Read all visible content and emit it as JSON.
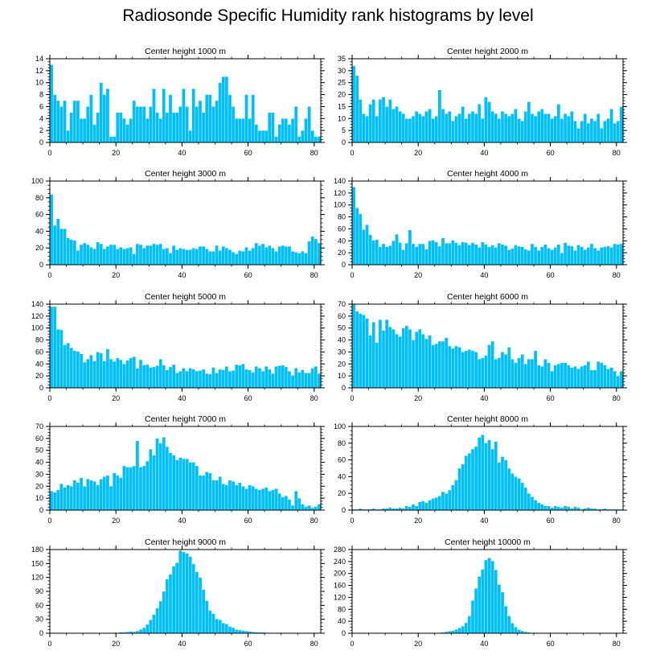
{
  "title": "Radiosonde Specific Humidity rank histograms by level",
  "bar_color": "#00BFFF",
  "chart_data": [
    {
      "type": "bar",
      "title": "Center height 1000 m",
      "xlim": [
        0,
        82
      ],
      "ylim": [
        0,
        14
      ],
      "xticks": [
        0,
        20,
        40,
        60,
        80
      ],
      "yticks": [
        0,
        2,
        4,
        6,
        8,
        10,
        12,
        14
      ],
      "values": [
        13,
        8,
        7,
        6,
        7,
        2,
        5,
        7,
        7,
        4,
        4,
        6,
        8,
        3,
        5,
        10,
        8,
        9,
        1,
        1,
        5,
        5,
        4,
        3,
        4,
        7,
        6,
        6,
        6,
        4,
        6,
        9,
        5,
        4,
        9,
        5,
        8,
        5,
        5,
        6,
        9,
        6,
        2,
        9,
        6,
        7,
        5,
        8,
        8,
        6,
        7,
        10,
        11,
        11,
        8,
        6,
        4,
        4,
        4,
        8,
        4,
        8,
        3,
        2,
        2,
        2,
        5,
        5,
        1,
        3,
        4,
        4,
        3,
        4,
        6,
        1,
        2,
        4,
        6,
        2,
        1,
        1
      ]
    },
    {
      "type": "bar",
      "title": "Center height 2000 m",
      "xlim": [
        0,
        82
      ],
      "ylim": [
        0,
        35
      ],
      "xticks": [
        0,
        20,
        40,
        60,
        80
      ],
      "yticks": [
        0,
        5,
        10,
        15,
        20,
        25,
        30,
        35
      ],
      "values": [
        32,
        28,
        18,
        12,
        11,
        16,
        18,
        11,
        18,
        19,
        15,
        18,
        14,
        15,
        13,
        12,
        10,
        10,
        11,
        13,
        12,
        11,
        13,
        14,
        10,
        11,
        22,
        14,
        12,
        13,
        9,
        11,
        12,
        15,
        10,
        12,
        13,
        12,
        16,
        10,
        19,
        17,
        13,
        12,
        10,
        13,
        12,
        11,
        12,
        14,
        10,
        9,
        13,
        17,
        12,
        11,
        13,
        14,
        12,
        12,
        10,
        11,
        16,
        10,
        12,
        11,
        13,
        9,
        6,
        9,
        12,
        8,
        10,
        9,
        12,
        6,
        9,
        10,
        14,
        8,
        9,
        15
      ]
    },
    {
      "type": "bar",
      "title": "Center height 3000 m",
      "xlim": [
        0,
        82
      ],
      "ylim": [
        0,
        100
      ],
      "xticks": [
        0,
        20,
        40,
        60,
        80
      ],
      "yticks": [
        0,
        20,
        40,
        60,
        80,
        100
      ],
      "values": [
        84,
        47,
        55,
        43,
        43,
        32,
        30,
        29,
        17,
        24,
        26,
        24,
        21,
        19,
        27,
        25,
        19,
        22,
        24,
        24,
        19,
        21,
        19,
        20,
        21,
        13,
        25,
        24,
        20,
        23,
        23,
        25,
        24,
        25,
        19,
        20,
        14,
        23,
        18,
        20,
        19,
        18,
        18,
        20,
        19,
        22,
        22,
        19,
        16,
        16,
        23,
        17,
        22,
        20,
        18,
        15,
        13,
        17,
        16,
        21,
        17,
        20,
        26,
        23,
        25,
        21,
        23,
        20,
        16,
        22,
        23,
        22,
        22,
        16,
        15,
        14,
        16,
        14,
        28,
        34,
        31,
        26
      ]
    },
    {
      "type": "bar",
      "title": "Center height 4000 m",
      "xlim": [
        0,
        82
      ],
      "ylim": [
        0,
        140
      ],
      "xticks": [
        0,
        20,
        40,
        60,
        80
      ],
      "yticks": [
        0,
        20,
        40,
        60,
        80,
        100,
        120,
        140
      ],
      "values": [
        130,
        95,
        85,
        59,
        67,
        50,
        41,
        42,
        30,
        35,
        30,
        32,
        40,
        51,
        37,
        25,
        36,
        58,
        35,
        30,
        35,
        35,
        26,
        40,
        41,
        38,
        31,
        45,
        36,
        36,
        41,
        37,
        33,
        38,
        37,
        33,
        37,
        34,
        29,
        38,
        34,
        30,
        33,
        29,
        36,
        34,
        32,
        25,
        27,
        33,
        31,
        30,
        26,
        24,
        35,
        30,
        24,
        30,
        34,
        28,
        25,
        29,
        34,
        20,
        37,
        32,
        31,
        24,
        33,
        30,
        25,
        29,
        35,
        28,
        24,
        29,
        30,
        31,
        29,
        35,
        34,
        35
      ]
    },
    {
      "type": "bar",
      "title": "Center height 5000 m",
      "xlim": [
        0,
        82
      ],
      "ylim": [
        0,
        140
      ],
      "xticks": [
        0,
        20,
        40,
        60,
        80
      ],
      "yticks": [
        0,
        20,
        40,
        60,
        80,
        100,
        120,
        140
      ],
      "values": [
        136,
        136,
        98,
        97,
        72,
        75,
        67,
        62,
        61,
        57,
        43,
        48,
        55,
        45,
        60,
        58,
        45,
        65,
        48,
        44,
        50,
        47,
        40,
        46,
        50,
        52,
        33,
        47,
        38,
        39,
        34,
        35,
        37,
        48,
        38,
        30,
        35,
        39,
        25,
        28,
        33,
        28,
        33,
        31,
        28,
        29,
        31,
        24,
        23,
        34,
        25,
        31,
        30,
        36,
        28,
        29,
        39,
        38,
        40,
        31,
        30,
        26,
        36,
        33,
        28,
        36,
        31,
        24,
        36,
        37,
        38,
        35,
        28,
        21,
        33,
        26,
        30,
        25,
        25,
        33,
        36,
        24
      ]
    },
    {
      "type": "bar",
      "title": "Center height 6000 m",
      "xlim": [
        0,
        82
      ],
      "ylim": [
        0,
        70
      ],
      "xticks": [
        0,
        20,
        40,
        60,
        80
      ],
      "yticks": [
        0,
        10,
        20,
        30,
        40,
        50,
        60,
        70
      ],
      "values": [
        70,
        64,
        62,
        61,
        58,
        44,
        55,
        38,
        57,
        48,
        57,
        51,
        49,
        45,
        43,
        50,
        52,
        49,
        40,
        47,
        49,
        45,
        41,
        44,
        36,
        37,
        39,
        39,
        42,
        35,
        33,
        35,
        34,
        30,
        31,
        32,
        31,
        30,
        24,
        25,
        27,
        36,
        39,
        24,
        25,
        30,
        28,
        34,
        24,
        21,
        25,
        28,
        20,
        24,
        24,
        31,
        19,
        18,
        24,
        21,
        14,
        19,
        20,
        21,
        21,
        19,
        17,
        18,
        16,
        18,
        19,
        22,
        15,
        15,
        22,
        21,
        19,
        16,
        17,
        14,
        10,
        14
      ]
    },
    {
      "type": "bar",
      "title": "Center height 7000 m",
      "xlim": [
        0,
        82
      ],
      "ylim": [
        0,
        70
      ],
      "xticks": [
        0,
        20,
        40,
        60,
        80
      ],
      "yticks": [
        0,
        10,
        20,
        30,
        40,
        50,
        60,
        70
      ],
      "values": [
        16,
        15,
        17,
        22,
        19,
        21,
        20,
        25,
        23,
        27,
        20,
        26,
        25,
        24,
        21,
        26,
        28,
        29,
        20,
        31,
        29,
        27,
        37,
        36,
        36,
        37,
        58,
        36,
        37,
        41,
        51,
        46,
        60,
        56,
        61,
        53,
        48,
        46,
        42,
        44,
        43,
        43,
        40,
        40,
        37,
        29,
        29,
        32,
        31,
        25,
        25,
        28,
        22,
        21,
        25,
        24,
        21,
        23,
        20,
        18,
        21,
        20,
        18,
        17,
        18,
        19,
        16,
        17,
        18,
        14,
        11,
        12,
        9,
        4,
        16,
        10,
        5,
        3,
        4,
        2,
        3,
        5
      ]
    },
    {
      "type": "bar",
      "title": "Center height 8000 m",
      "xlim": [
        0,
        82
      ],
      "ylim": [
        0,
        100
      ],
      "xticks": [
        0,
        20,
        40,
        60,
        80
      ],
      "yticks": [
        0,
        20,
        40,
        60,
        80,
        100
      ],
      "values": [
        1,
        1,
        2,
        1,
        1,
        1,
        2,
        1,
        1,
        2,
        2,
        3,
        2,
        2,
        3,
        2,
        5,
        4,
        7,
        5,
        10,
        11,
        9,
        12,
        14,
        15,
        17,
        22,
        20,
        24,
        30,
        36,
        50,
        55,
        65,
        68,
        73,
        76,
        87,
        90,
        80,
        84,
        73,
        82,
        57,
        64,
        60,
        50,
        44,
        40,
        38,
        33,
        27,
        20,
        16,
        12,
        9,
        7,
        5,
        5,
        3,
        5,
        4,
        3,
        5,
        4,
        2,
        4,
        3,
        1,
        2,
        3,
        2,
        2,
        1,
        1,
        2,
        1,
        1,
        1,
        1,
        1
      ]
    },
    {
      "type": "bar",
      "title": "Center height 9000 m",
      "xlim": [
        0,
        82
      ],
      "ylim": [
        0,
        180
      ],
      "xticks": [
        0,
        20,
        40,
        60,
        80
      ],
      "yticks": [
        0,
        30,
        60,
        90,
        120,
        150,
        180
      ],
      "values": [
        0,
        0,
        0,
        0,
        0,
        0,
        0,
        0,
        0,
        0,
        0,
        0,
        0,
        0,
        0,
        0,
        0,
        0,
        0,
        1,
        1,
        2,
        2,
        3,
        4,
        3,
        5,
        8,
        12,
        19,
        29,
        40,
        54,
        69,
        90,
        116,
        127,
        144,
        152,
        178,
        175,
        172,
        165,
        149,
        132,
        120,
        94,
        70,
        49,
        42,
        31,
        29,
        22,
        20,
        14,
        12,
        8,
        7,
        6,
        5,
        4,
        3,
        2,
        2,
        2,
        1,
        1,
        1,
        1,
        1,
        1,
        0,
        0,
        0,
        0,
        0,
        0,
        0,
        0,
        0,
        0,
        0
      ]
    },
    {
      "type": "bar",
      "title": "Center height 10000 m",
      "xlim": [
        0,
        82
      ],
      "ylim": [
        0,
        280
      ],
      "xticks": [
        0,
        20,
        40,
        60,
        80
      ],
      "yticks": [
        0,
        40,
        80,
        120,
        160,
        200,
        240,
        280
      ],
      "values": [
        0,
        0,
        0,
        0,
        0,
        0,
        0,
        0,
        0,
        0,
        0,
        0,
        0,
        0,
        0,
        0,
        0,
        0,
        0,
        0,
        0,
        0,
        0,
        0,
        0,
        1,
        2,
        3,
        5,
        7,
        9,
        13,
        18,
        24,
        35,
        58,
        110,
        150,
        190,
        214,
        245,
        252,
        242,
        212,
        163,
        138,
        91,
        58,
        34,
        21,
        12,
        8,
        5,
        3,
        2,
        2,
        1,
        1,
        1,
        0,
        0,
        0,
        0,
        0,
        0,
        0,
        0,
        0,
        0,
        0,
        0,
        0,
        0,
        0,
        0,
        0,
        0,
        0,
        0,
        0,
        0,
        0
      ]
    }
  ]
}
